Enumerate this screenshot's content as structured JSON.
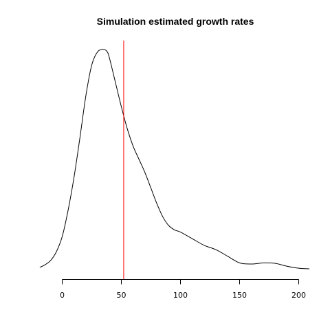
{
  "chart_data": {
    "type": "line",
    "title": "Simulation estimated growth rates",
    "xlabel": "",
    "ylabel": "",
    "xlim": [
      -20,
      210
    ],
    "ylim": [
      0,
      1
    ],
    "x_ticks": [
      0,
      50,
      100,
      150,
      200
    ],
    "x_tick_labels": [
      "0",
      "50",
      "100",
      "150",
      "200"
    ],
    "grid": false,
    "legend": "none",
    "series": [
      {
        "color": "#000000",
        "x": [
          -19,
          -15,
          -10,
          -5,
          0,
          5,
          10,
          15,
          20,
          25,
          30,
          35,
          38,
          40,
          45,
          50,
          55,
          60,
          65,
          70,
          75,
          80,
          85,
          90,
          95,
          100,
          110,
          120,
          130,
          140,
          150,
          160,
          170,
          180,
          190,
          200,
          209
        ],
        "y": [
          0.01,
          0.02,
          0.04,
          0.08,
          0.15,
          0.27,
          0.42,
          0.6,
          0.79,
          0.93,
          0.99,
          1.0,
          0.99,
          0.96,
          0.85,
          0.74,
          0.64,
          0.56,
          0.5,
          0.44,
          0.37,
          0.3,
          0.24,
          0.2,
          0.18,
          0.17,
          0.14,
          0.11,
          0.09,
          0.06,
          0.03,
          0.025,
          0.03,
          0.028,
          0.015,
          0.006,
          0.003
        ]
      }
    ],
    "reference_lines": [
      {
        "x": 52,
        "color": "#ff0000"
      }
    ]
  }
}
